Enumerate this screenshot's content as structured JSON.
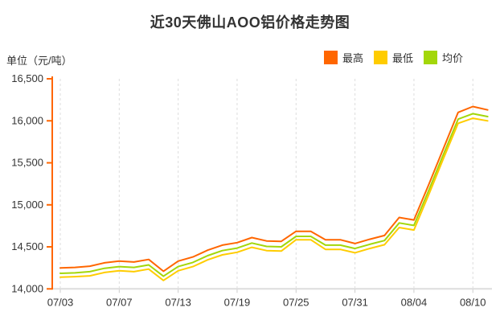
{
  "title": "近30天佛山AOO铝价格走势图",
  "unit_label": "单位（元/吨）",
  "legend": [
    {
      "label": "最高",
      "color": "#ff6600"
    },
    {
      "label": "最低",
      "color": "#ffcc00"
    },
    {
      "label": "均价",
      "color": "#a3d70a"
    }
  ],
  "colors": {
    "y_axis": "#ff6600",
    "x_axis": "#dddddd",
    "grid": "#dddddd",
    "x_tick": "#cccccc",
    "text": "#333333",
    "background": "#ffffff"
  },
  "chart_data": {
    "type": "line",
    "title": "近30天佛山AOO铝价格走势图",
    "ylabel": "单位（元/吨）",
    "ylim": [
      14000,
      16500
    ],
    "ytick_step": 500,
    "ytick_labels": [
      "14,000",
      "14,500",
      "15,000",
      "15,500",
      "16,000",
      "16,500"
    ],
    "num_points": 30,
    "x_labels": [
      "07/03",
      "07/07",
      "07/13",
      "07/19",
      "07/25",
      "07/31",
      "08/04",
      "08/10"
    ],
    "x_label_indices": [
      0,
      4,
      8,
      12,
      16,
      20,
      24,
      28
    ],
    "grid": "vertical-dashed",
    "legend_position": "top-right",
    "series": [
      {
        "name": "最高",
        "color": "#ff6600",
        "values": [
          14250,
          14255,
          14270,
          14310,
          14330,
          14320,
          14350,
          14210,
          14330,
          14380,
          14460,
          14520,
          14550,
          14610,
          14570,
          14565,
          14685,
          14685,
          14585,
          14585,
          14540,
          14590,
          14635,
          14850,
          14820,
          15240,
          15670,
          16100,
          16170,
          16130
        ]
      },
      {
        "name": "最低",
        "color": "#ffcc00",
        "values": [
          14140,
          14145,
          14155,
          14195,
          14215,
          14205,
          14235,
          14100,
          14215,
          14265,
          14345,
          14405,
          14435,
          14495,
          14455,
          14450,
          14585,
          14585,
          14470,
          14470,
          14430,
          14480,
          14525,
          14730,
          14700,
          15120,
          15550,
          15970,
          16030,
          16000
        ]
      },
      {
        "name": "均价",
        "color": "#a3d70a",
        "values": [
          14185,
          14190,
          14205,
          14245,
          14265,
          14255,
          14285,
          14150,
          14265,
          14315,
          14395,
          14455,
          14485,
          14545,
          14505,
          14500,
          14625,
          14625,
          14520,
          14520,
          14480,
          14530,
          14575,
          14785,
          14755,
          15170,
          15600,
          16020,
          16085,
          16050
        ]
      }
    ]
  }
}
